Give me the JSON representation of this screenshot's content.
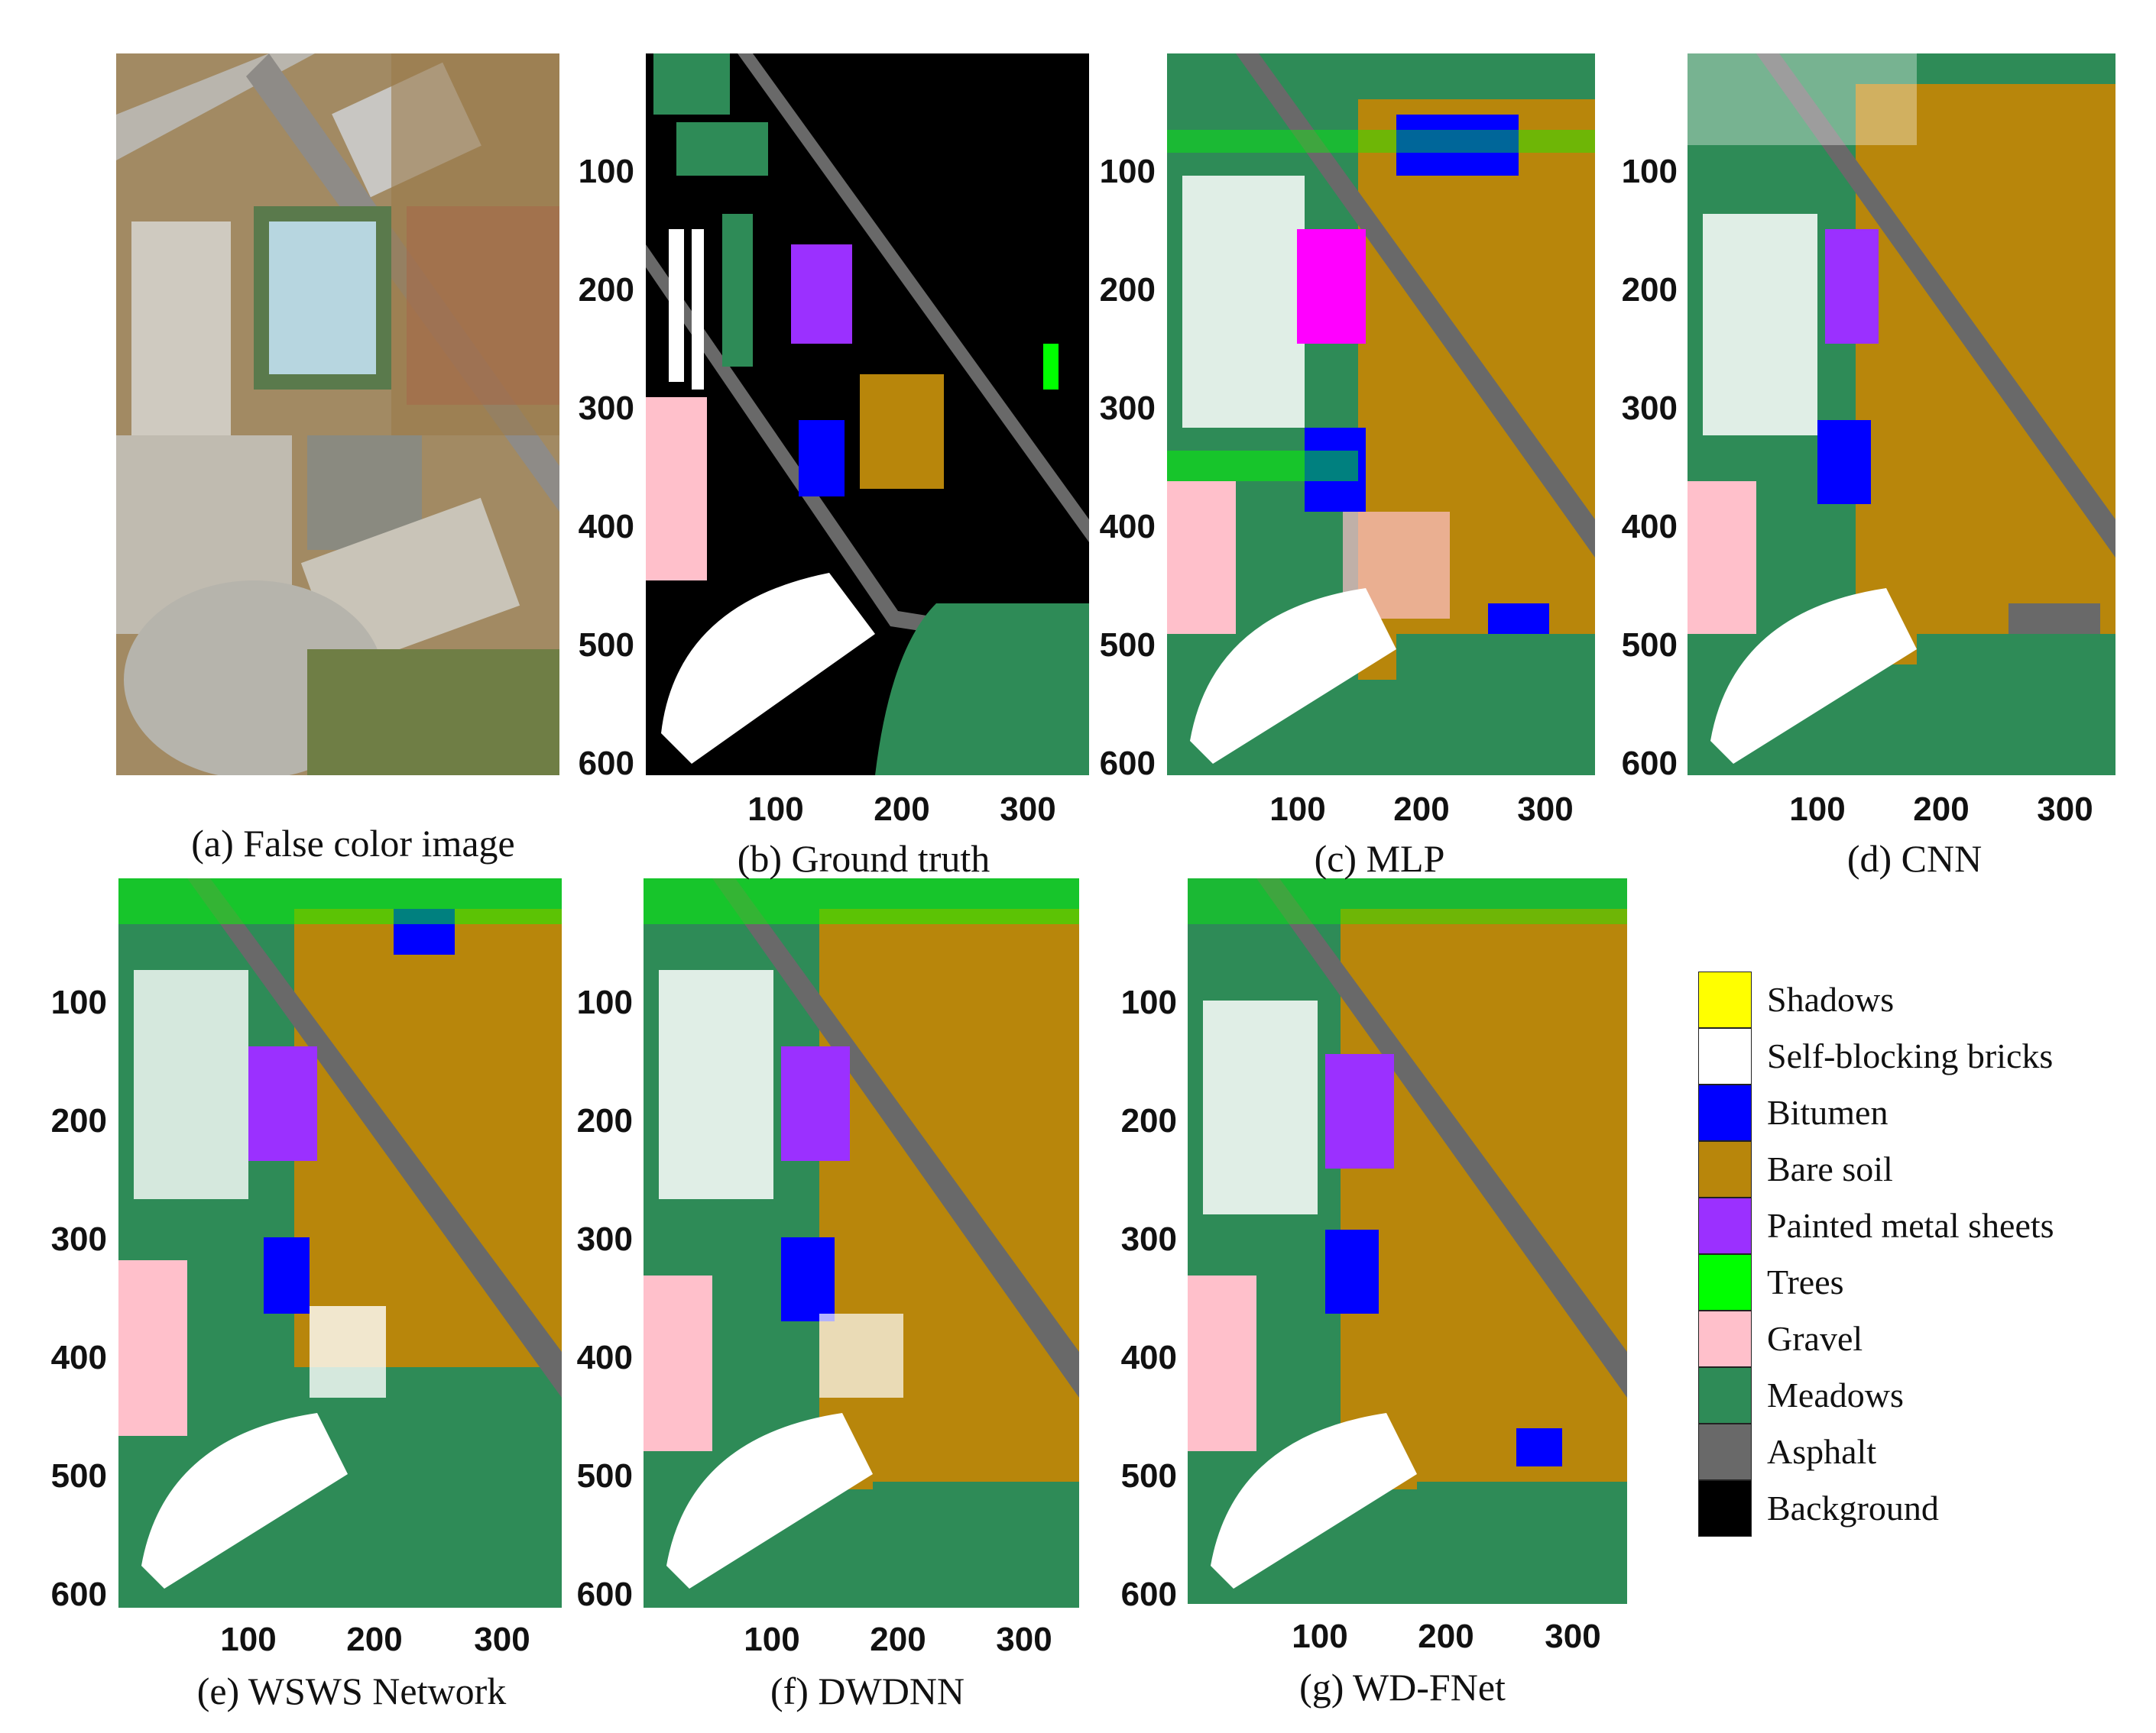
{
  "panels": [
    {
      "id": "a",
      "caption": "(a) False color image"
    },
    {
      "id": "b",
      "caption": "(b)   Ground truth"
    },
    {
      "id": "c",
      "caption": "(c) MLP"
    },
    {
      "id": "d",
      "caption": "(d) CNN"
    },
    {
      "id": "e",
      "caption": "(e) WSWS Network"
    },
    {
      "id": "f",
      "caption": "(f) DWDNN"
    },
    {
      "id": "g",
      "caption": "(g) WD-FNet"
    }
  ],
  "axis": {
    "y_ticks": [
      "100",
      "200",
      "300",
      "400",
      "500",
      "600"
    ],
    "x_ticks": [
      "100",
      "200",
      "300"
    ]
  },
  "legend": [
    {
      "label": "Shadows",
      "color": "#ffff00"
    },
    {
      "label": "Self-blocking bricks",
      "color": "#ffffff"
    },
    {
      "label": "Bitumen",
      "color": "#0000ff"
    },
    {
      "label": "Bare soil",
      "color": "#b8860b"
    },
    {
      "label": "Painted metal sheets",
      "color": "#9b30ff"
    },
    {
      "label": "Trees",
      "color": "#00ff00"
    },
    {
      "label": "Gravel",
      "color": "#ffc0cb"
    },
    {
      "label": "Meadows",
      "color": "#2e8b57"
    },
    {
      "label": "Asphalt",
      "color": "#696969"
    },
    {
      "label": "Background",
      "color": "#000000"
    }
  ]
}
